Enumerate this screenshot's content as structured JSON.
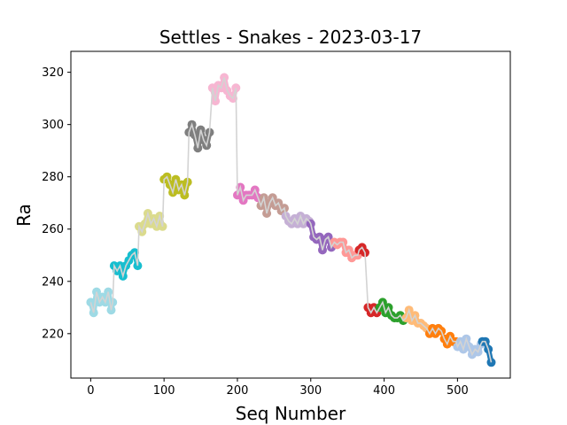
{
  "chart_data": {
    "type": "line",
    "title": "Settles - Snakes - 2023-03-17",
    "xlabel": "Seq Number",
    "ylabel": "Ra",
    "xlim": [
      -27,
      572
    ],
    "ylim": [
      203,
      328
    ],
    "xticks": [
      0,
      100,
      200,
      300,
      400,
      500
    ],
    "yticks": [
      220,
      240,
      260,
      280,
      300,
      320
    ],
    "grid": false,
    "legend": "none",
    "connector_color": "#d3d3d3",
    "segments": [
      {
        "color": "#9edae5",
        "x": [
          0,
          4,
          8,
          12,
          16,
          20,
          24,
          28,
          30
        ],
        "y": [
          232,
          228,
          236,
          232,
          234,
          232,
          236,
          229,
          232
        ]
      },
      {
        "color": "#17becf",
        "x": [
          32,
          36,
          40,
          44,
          48,
          52,
          56,
          60,
          64
        ],
        "y": [
          246,
          244,
          246,
          242,
          246,
          248,
          250,
          251,
          246
        ]
      },
      {
        "color": "#dbdb8d",
        "x": [
          66,
          70,
          74,
          78,
          82,
          86,
          90,
          94,
          98
        ],
        "y": [
          261,
          259,
          262,
          266,
          262,
          264,
          261,
          265,
          261
        ]
      },
      {
        "color": "#bcbd22",
        "x": [
          100,
          104,
          108,
          112,
          116,
          120,
          124,
          128,
          132
        ],
        "y": [
          279,
          280,
          277,
          274,
          279,
          275,
          277,
          273,
          278
        ]
      },
      {
        "color": "#7f7f7f",
        "x": [
          134,
          138,
          142,
          146,
          150,
          154,
          158,
          162
        ],
        "y": [
          297,
          300,
          296,
          291,
          298,
          294,
          292,
          297
        ]
      },
      {
        "color": "#f7b6d2",
        "x": [
          166,
          170,
          174,
          178,
          182,
          186,
          190,
          194,
          198
        ],
        "y": [
          314,
          309,
          315,
          314,
          318,
          313,
          311,
          310,
          314
        ]
      },
      {
        "color": "#e377c2",
        "x": [
          200,
          204,
          208,
          212,
          216,
          220,
          224,
          228
        ],
        "y": [
          273,
          276,
          271,
          273,
          273,
          273,
          275,
          272
        ]
      },
      {
        "color": "#c49c94",
        "x": [
          232,
          236,
          240,
          244,
          248,
          252,
          256,
          260,
          264
        ],
        "y": [
          269,
          272,
          266,
          270,
          272,
          269,
          270,
          267,
          268
        ]
      },
      {
        "color": "#c5b0d5",
        "x": [
          266,
          270,
          274,
          278,
          282,
          286,
          290,
          294,
          298
        ],
        "y": [
          265,
          263,
          262,
          264,
          262,
          265,
          262,
          264,
          263
        ]
      },
      {
        "color": "#9467bd",
        "x": [
          300,
          304,
          308,
          312,
          316,
          320,
          324,
          328
        ],
        "y": [
          262,
          257,
          256,
          257,
          252,
          256,
          257,
          253
        ]
      },
      {
        "color": "#ff9896",
        "x": [
          332,
          336,
          340,
          344,
          348,
          352,
          356,
          360,
          364
        ],
        "y": [
          255,
          254,
          255,
          255,
          251,
          252,
          249,
          250,
          250
        ]
      },
      {
        "color": "#d62728",
        "x": [
          366,
          370,
          374
        ],
        "y": [
          252,
          253,
          251
        ]
      },
      {
        "color": "#d62728",
        "x": [
          378,
          382,
          386,
          390
        ],
        "y": [
          230,
          228,
          230,
          228
        ]
      },
      {
        "color": "#2ca02c",
        "x": [
          394,
          398,
          402,
          406,
          410,
          414,
          418,
          422,
          426
        ],
        "y": [
          230,
          232,
          228,
          230,
          227,
          226,
          226,
          227,
          225
        ]
      },
      {
        "color": "#ffbb78",
        "x": [
          430,
          434,
          438,
          442,
          446,
          450,
          454,
          458
        ],
        "y": [
          226,
          229,
          225,
          227,
          224,
          224,
          223,
          222
        ]
      },
      {
        "color": "#ff7f0e",
        "x": [
          462,
          466,
          470,
          474,
          478
        ],
        "y": [
          220,
          222,
          220,
          222,
          221
        ]
      },
      {
        "color": "#ff7f0e",
        "x": [
          482,
          486,
          490,
          494,
          498
        ],
        "y": [
          218,
          216,
          219,
          217,
          217
        ]
      },
      {
        "color": "#aec7e8",
        "x": [
          500,
          504,
          508,
          512,
          516,
          520,
          524,
          528,
          532
        ],
        "y": [
          215,
          217,
          214,
          218,
          215,
          212,
          214,
          213,
          216
        ]
      },
      {
        "color": "#1f77b4",
        "x": [
          534,
          538,
          542,
          546
        ],
        "y": [
          217,
          217,
          214,
          209
        ]
      }
    ]
  }
}
